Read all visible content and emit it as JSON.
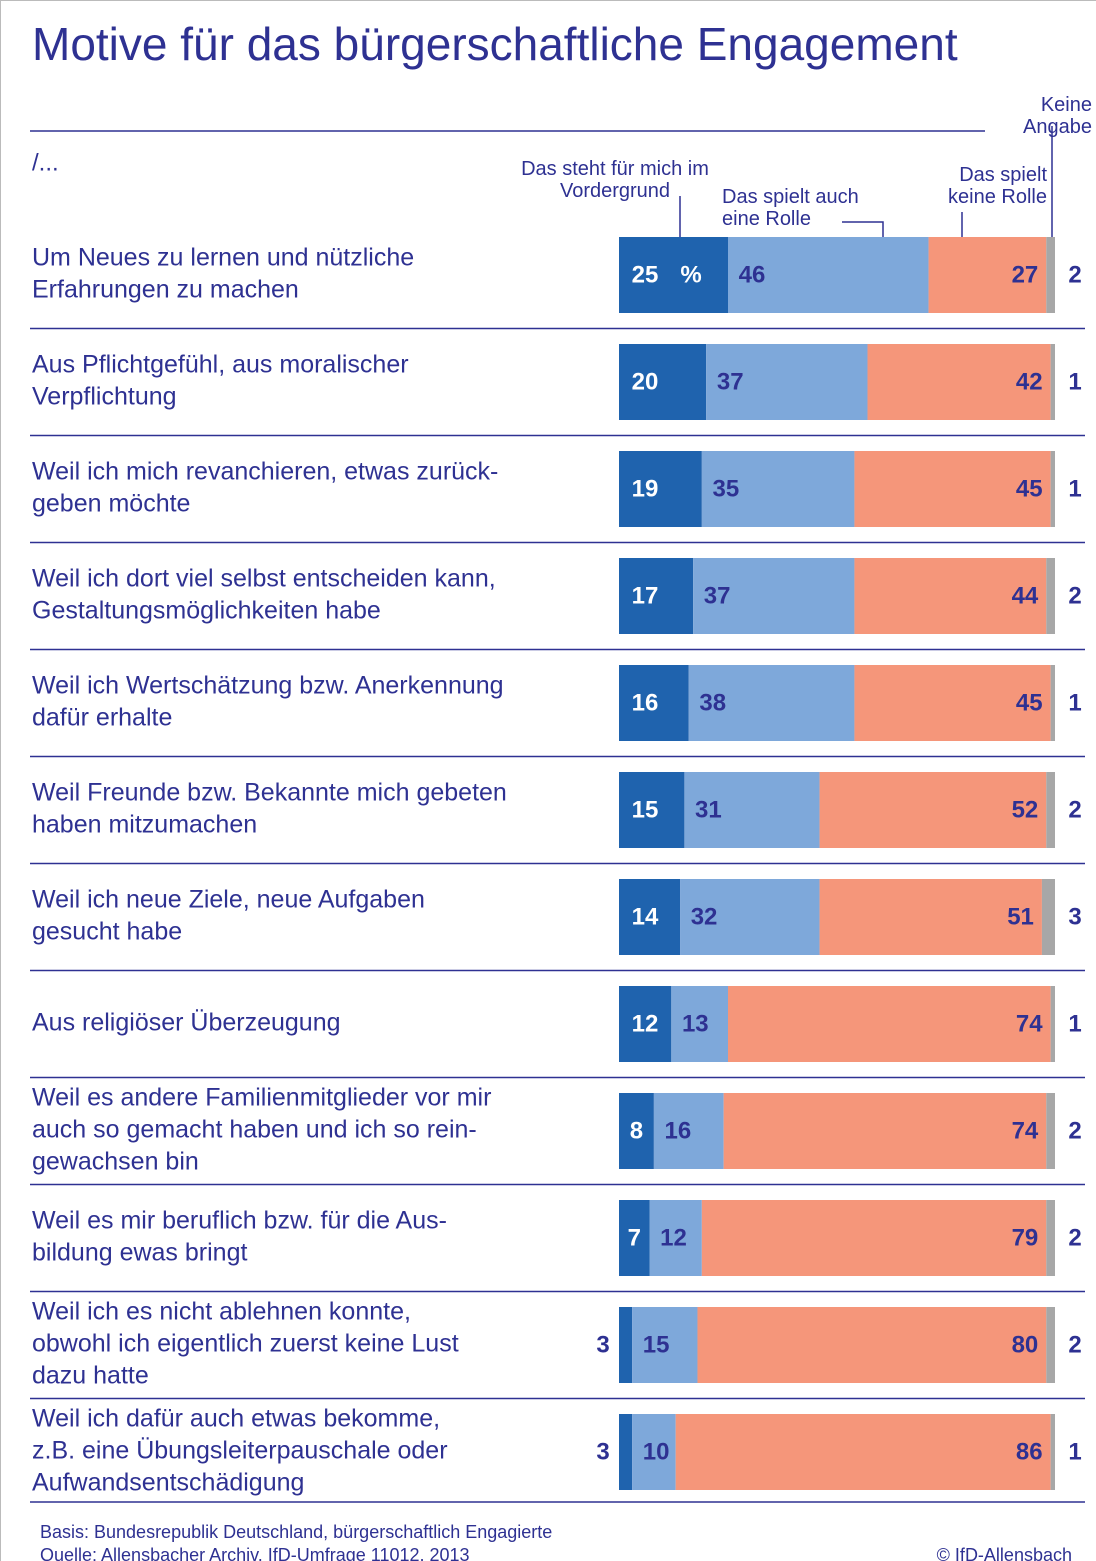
{
  "chart_data": {
    "type": "stacked-bar",
    "title": "Motive für das bürgerschaftliche Engagement",
    "subtitle": "/...",
    "unit": "%",
    "categories": [
      [
        "Um Neues zu lernen und nützliche",
        "Erfahrungen zu machen"
      ],
      [
        "Aus Pflichtgefühl, aus moralischer",
        "Verpflichtung"
      ],
      [
        "Weil ich mich revanchieren, etwas zurück-",
        "geben möchte"
      ],
      [
        "Weil ich dort viel selbst entscheiden kann,",
        "Gestaltungsmöglichkeiten habe"
      ],
      [
        "Weil ich Wertschätzung bzw. Anerkennung",
        "dafür erhalte"
      ],
      [
        "Weil Freunde bzw. Bekannte mich gebeten",
        "haben mitzumachen"
      ],
      [
        "Weil ich neue Ziele, neue Aufgaben",
        "gesucht habe"
      ],
      [
        "Aus religiöser Überzeugung"
      ],
      [
        "Weil es andere Familienmitglieder vor mir",
        "auch so gemacht haben und ich so rein-",
        "gewachsen bin"
      ],
      [
        "Weil es mir beruflich bzw. für die Aus-",
        "bildung ewas bringt"
      ],
      [
        "Weil ich es nicht ablehnen konnte,",
        "obwohl ich eigentlich zuerst keine Lust",
        "dazu hatte"
      ],
      [
        "Weil ich dafür auch etwas bekomme,",
        "z.B. eine Übungsleiterpauschale oder",
        "Aufwandsentschädigung"
      ]
    ],
    "series": [
      {
        "name": "Das steht für mich im Vordergrund",
        "color": "#1f63ae",
        "values": [
          25,
          20,
          19,
          17,
          16,
          15,
          14,
          12,
          8,
          7,
          3,
          3
        ]
      },
      {
        "name": "Das spielt auch eine Rolle",
        "color": "#7ea8da",
        "values": [
          46,
          37,
          35,
          37,
          38,
          31,
          32,
          13,
          16,
          12,
          15,
          10
        ]
      },
      {
        "name": "Das spielt keine Rolle",
        "color": "#f5967a",
        "values": [
          27,
          42,
          45,
          44,
          45,
          52,
          51,
          74,
          74,
          79,
          80,
          86
        ]
      },
      {
        "name": "Keine Angabe",
        "color": "#a7a7a7",
        "values": [
          2,
          1,
          1,
          2,
          1,
          2,
          3,
          1,
          2,
          2,
          2,
          1
        ]
      }
    ],
    "xlim": [
      0,
      100
    ],
    "footnotes": [
      "Basis: Bundesrepublik Deutschland, bürgerschaftlich Engagierte",
      "Quelle: Allensbacher Archiv, IfD-Umfrage 11012, 2013"
    ],
    "copyright": "© IfD-Allensbach"
  }
}
